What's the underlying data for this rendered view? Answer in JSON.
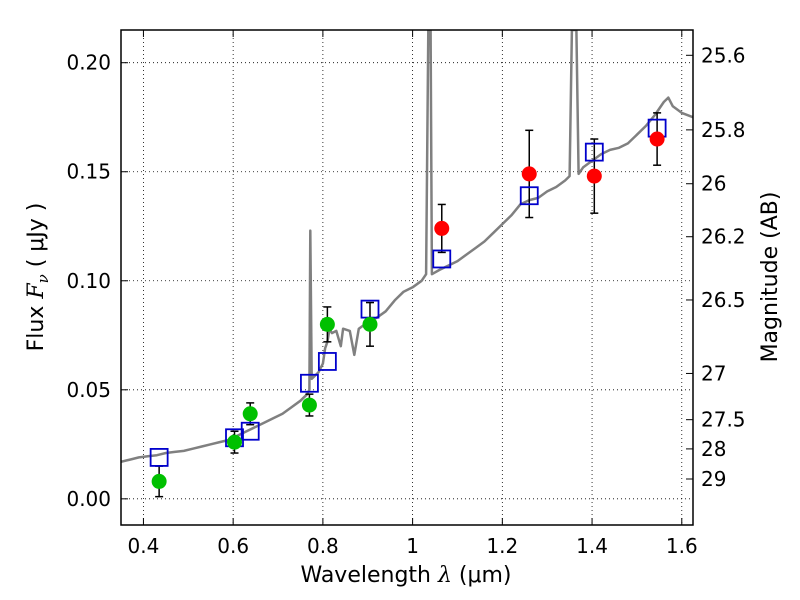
{
  "chart_data": {
    "type": "scatter",
    "title": "",
    "xlabel": {
      "prefix": "Wavelength  ",
      "symbol": "λ",
      "unit": " (μm)"
    },
    "ylabel": {
      "prefix": "Flux  ",
      "symbol": "F",
      "sub": "ν",
      "unit": "  ( μJy )"
    },
    "y2label": "Magnitude (AB)",
    "xlim": [
      0.35,
      1.625
    ],
    "ylim": [
      -0.012,
      0.215
    ],
    "grid": true,
    "x_ticks": [
      {
        "value": 0.4,
        "label": "0.4"
      },
      {
        "value": 0.6,
        "label": "0.6"
      },
      {
        "value": 0.8,
        "label": "0.8"
      },
      {
        "value": 1.0,
        "label": "1"
      },
      {
        "value": 1.2,
        "label": "1.2"
      },
      {
        "value": 1.4,
        "label": "1.4"
      },
      {
        "value": 1.6,
        "label": "1.6"
      }
    ],
    "y_ticks": [
      {
        "value": 0.0,
        "label": "0.00"
      },
      {
        "value": 0.05,
        "label": "0.05"
      },
      {
        "value": 0.1,
        "label": "0.10"
      },
      {
        "value": 0.15,
        "label": "0.15"
      },
      {
        "value": 0.2,
        "label": "0.20"
      }
    ],
    "y2_ticks": [
      {
        "flux": 0.2034,
        "label": "25.6"
      },
      {
        "flux": 0.1692,
        "label": "25.8"
      },
      {
        "flux": 0.1445,
        "label": "26"
      },
      {
        "flux": 0.1202,
        "label": "26.2"
      },
      {
        "flux": 0.0912,
        "label": "26.5"
      },
      {
        "flux": 0.0575,
        "label": "27"
      },
      {
        "flux": 0.0363,
        "label": "27.5"
      },
      {
        "flux": 0.0229,
        "label": "28"
      },
      {
        "flux": 0.0091,
        "label": "29"
      }
    ],
    "colors": {
      "template": "#808080",
      "model_box": "#0000cc",
      "green": "#00c000",
      "red": "#ff0000",
      "errorbar": "#000000",
      "grid": "#000000"
    },
    "series": [
      {
        "kind": "line",
        "points": [
          [
            0.35,
            0.017
          ],
          [
            0.37,
            0.018
          ],
          [
            0.39,
            0.019
          ],
          [
            0.41,
            0.0195
          ],
          [
            0.43,
            0.02
          ],
          [
            0.45,
            0.021
          ],
          [
            0.47,
            0.0215
          ],
          [
            0.49,
            0.022
          ],
          [
            0.51,
            0.023
          ],
          [
            0.53,
            0.024
          ],
          [
            0.55,
            0.025
          ],
          [
            0.57,
            0.026
          ],
          [
            0.59,
            0.027
          ],
          [
            0.61,
            0.029
          ],
          [
            0.63,
            0.031
          ],
          [
            0.65,
            0.033
          ],
          [
            0.67,
            0.035
          ],
          [
            0.69,
            0.037
          ],
          [
            0.71,
            0.039
          ],
          [
            0.73,
            0.042
          ],
          [
            0.75,
            0.045
          ],
          [
            0.765,
            0.048
          ],
          [
            0.77,
            0.05
          ],
          [
            0.772,
            0.123
          ],
          [
            0.775,
            0.055
          ],
          [
            0.79,
            0.058
          ],
          [
            0.8,
            0.062
          ],
          [
            0.805,
            0.069
          ],
          [
            0.81,
            0.072
          ],
          [
            0.815,
            0.078
          ],
          [
            0.82,
            0.076
          ],
          [
            0.83,
            0.077
          ],
          [
            0.84,
            0.07
          ],
          [
            0.845,
            0.078
          ],
          [
            0.86,
            0.077
          ],
          [
            0.87,
            0.066
          ],
          [
            0.88,
            0.078
          ],
          [
            0.9,
            0.081
          ],
          [
            0.92,
            0.083
          ],
          [
            0.94,
            0.086
          ],
          [
            0.96,
            0.091
          ],
          [
            0.98,
            0.095
          ],
          [
            1.0,
            0.097
          ],
          [
            1.02,
            0.1
          ],
          [
            1.03,
            0.103
          ],
          [
            1.035,
            0.215
          ],
          [
            1.04,
            0.215
          ],
          [
            1.043,
            0.103
          ],
          [
            1.06,
            0.105
          ],
          [
            1.08,
            0.107
          ],
          [
            1.1,
            0.109
          ],
          [
            1.12,
            0.112
          ],
          [
            1.14,
            0.115
          ],
          [
            1.16,
            0.118
          ],
          [
            1.18,
            0.122
          ],
          [
            1.2,
            0.126
          ],
          [
            1.22,
            0.13
          ],
          [
            1.24,
            0.135
          ],
          [
            1.26,
            0.137
          ],
          [
            1.28,
            0.138
          ],
          [
            1.3,
            0.141
          ],
          [
            1.32,
            0.143
          ],
          [
            1.34,
            0.146
          ],
          [
            1.35,
            0.148
          ],
          [
            1.355,
            0.215
          ],
          [
            1.365,
            0.215
          ],
          [
            1.37,
            0.149
          ],
          [
            1.38,
            0.152
          ],
          [
            1.4,
            0.155
          ],
          [
            1.42,
            0.158
          ],
          [
            1.44,
            0.16
          ],
          [
            1.46,
            0.161
          ],
          [
            1.48,
            0.163
          ],
          [
            1.5,
            0.167
          ],
          [
            1.52,
            0.171
          ],
          [
            1.54,
            0.176
          ],
          [
            1.56,
            0.182
          ],
          [
            1.57,
            0.184
          ],
          [
            1.58,
            0.18
          ],
          [
            1.6,
            0.177
          ],
          [
            1.625,
            0.175
          ]
        ]
      },
      {
        "kind": "box",
        "points": [
          [
            0.435,
            0.019
          ],
          [
            0.603,
            0.028
          ],
          [
            0.638,
            0.031
          ],
          [
            0.77,
            0.053
          ],
          [
            0.81,
            0.063
          ],
          [
            0.905,
            0.087
          ],
          [
            1.065,
            0.11
          ],
          [
            1.26,
            0.139
          ],
          [
            1.405,
            0.159
          ],
          [
            1.545,
            0.17
          ]
        ]
      },
      {
        "kind": "dot-green",
        "points": [
          [
            0.435,
            0.008,
            0.007
          ],
          [
            0.603,
            0.026,
            0.005
          ],
          [
            0.638,
            0.039,
            0.005
          ],
          [
            0.77,
            0.043,
            0.005
          ],
          [
            0.81,
            0.08,
            0.008
          ],
          [
            0.905,
            0.08,
            0.01
          ]
        ]
      },
      {
        "kind": "dot-red",
        "points": [
          [
            1.065,
            0.124,
            0.011
          ],
          [
            1.26,
            0.149,
            0.02
          ],
          [
            1.405,
            0.148,
            0.017
          ],
          [
            1.545,
            0.165,
            0.012
          ]
        ]
      }
    ]
  }
}
